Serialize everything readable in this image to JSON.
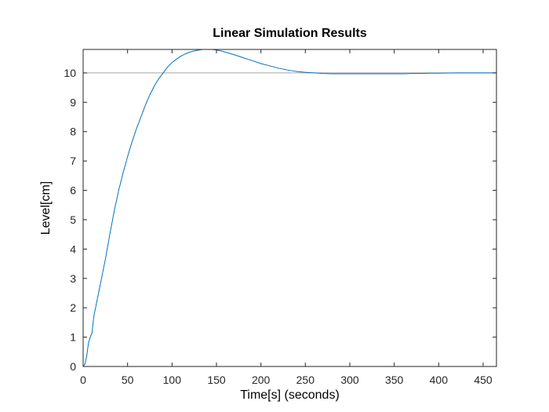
{
  "chart_data": {
    "type": "line",
    "title": "Linear Simulation Results",
    "xlabel": "Time[s] (seconds)",
    "ylabel": "Level[cm]",
    "xlim": [
      0,
      465
    ],
    "ylim": [
      0,
      10.8
    ],
    "xticks": [
      0,
      50,
      100,
      150,
      200,
      250,
      300,
      350,
      400,
      450
    ],
    "yticks": [
      0,
      1,
      2,
      3,
      4,
      5,
      6,
      7,
      8,
      9,
      10
    ],
    "grid": false,
    "reference_line": {
      "y": 10,
      "color": "#a6a6a6"
    },
    "series": [
      {
        "color": "#0072bd",
        "x": [
          0,
          2,
          4,
          6,
          8,
          10,
          12,
          15,
          20,
          25,
          30,
          35,
          40,
          45,
          50,
          55,
          60,
          65,
          70,
          75,
          80,
          85,
          90,
          95,
          100,
          105,
          110,
          115,
          120,
          125,
          130,
          135,
          140,
          145,
          150,
          155,
          160,
          170,
          180,
          190,
          200,
          210,
          220,
          230,
          240,
          250,
          260,
          270,
          280,
          290,
          300,
          310,
          320,
          330,
          340,
          350,
          360,
          370,
          380,
          390,
          400,
          420,
          440,
          465
        ],
        "y": [
          0,
          0.08,
          0.35,
          0.8,
          1.0,
          1.15,
          1.7,
          2.15,
          2.9,
          3.65,
          4.5,
          5.3,
          6.0,
          6.6,
          7.15,
          7.65,
          8.1,
          8.5,
          8.9,
          9.25,
          9.55,
          9.8,
          10.0,
          10.2,
          10.35,
          10.47,
          10.57,
          10.65,
          10.71,
          10.75,
          10.78,
          10.8,
          10.8,
          10.8,
          10.78,
          10.75,
          10.71,
          10.62,
          10.52,
          10.42,
          10.32,
          10.24,
          10.16,
          10.1,
          10.05,
          10.02,
          10.0,
          9.98,
          9.97,
          9.97,
          9.97,
          9.97,
          9.97,
          9.97,
          9.97,
          9.97,
          9.97,
          9.98,
          9.98,
          9.99,
          9.99,
          10.0,
          10.0,
          10.0
        ]
      }
    ]
  }
}
